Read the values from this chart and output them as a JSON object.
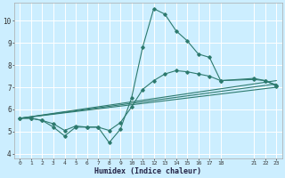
{
  "xlabel": "Humidex (Indice chaleur)",
  "ylabel": "",
  "bg_color": "#cceeff",
  "grid_color": "#ffffff",
  "line_color": "#2d7a6e",
  "xlim": [
    -0.5,
    23.5
  ],
  "ylim": [
    3.8,
    10.8
  ],
  "xticks": [
    0,
    1,
    2,
    3,
    4,
    5,
    6,
    7,
    8,
    9,
    10,
    11,
    12,
    13,
    14,
    15,
    16,
    17,
    18,
    21,
    22,
    23
  ],
  "yticks": [
    4,
    5,
    6,
    7,
    8,
    9,
    10
  ],
  "series": {
    "line1_x": [
      0,
      1,
      2,
      3,
      4,
      5,
      6,
      7,
      8,
      9,
      10,
      11,
      12,
      13,
      14,
      15,
      16,
      17,
      18,
      21,
      22,
      23
    ],
    "line1_y": [
      5.6,
      5.6,
      5.5,
      5.2,
      4.8,
      5.2,
      5.2,
      5.2,
      4.5,
      5.1,
      6.5,
      8.8,
      10.55,
      10.3,
      9.55,
      9.1,
      8.5,
      8.35,
      7.3,
      7.4,
      7.3,
      7.1
    ],
    "line2_x": [
      0,
      1,
      2,
      3,
      4,
      5,
      6,
      7,
      8,
      9,
      10,
      11,
      12,
      13,
      14,
      15,
      16,
      17,
      18,
      21,
      22,
      23
    ],
    "line2_y": [
      5.6,
      5.6,
      5.5,
      5.35,
      5.05,
      5.25,
      5.2,
      5.2,
      5.05,
      5.4,
      6.1,
      6.9,
      7.3,
      7.6,
      7.75,
      7.7,
      7.6,
      7.5,
      7.3,
      7.35,
      7.3,
      7.05
    ],
    "line3_x": [
      0,
      23
    ],
    "line3_y": [
      5.6,
      7.3
    ],
    "line4_x": [
      0,
      23
    ],
    "line4_y": [
      5.6,
      7.15
    ],
    "line5_x": [
      0,
      23
    ],
    "line5_y": [
      5.6,
      7.0
    ]
  }
}
